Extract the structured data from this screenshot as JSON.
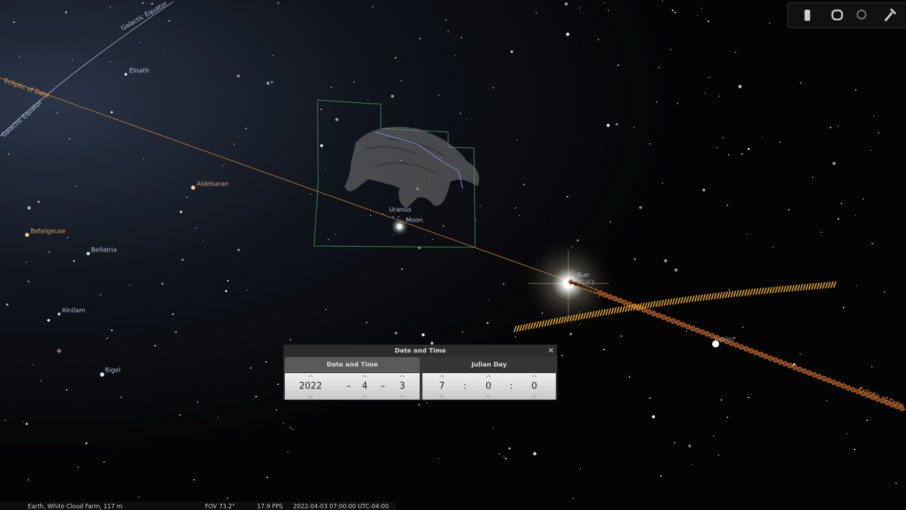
{
  "sky_labels": {
    "galactic_equator_top": "Galactic Equator",
    "galactic_equator_left": "Galactic Equator",
    "ecliptic_left": "Ecliptic of Date",
    "ecliptic_right": "Ecliptic of Date",
    "elnath": "Elnath",
    "aldebaran": "Aldebaran",
    "betelgeuse": "Betelgeuse",
    "bellatrix": "Bellatrix",
    "alnilam": "Alnilam",
    "rigel": "Rigel",
    "uranus": "Uranus",
    "moon": "Moon",
    "sun": "Sun",
    "mercury": "Mercury",
    "jupiter": "Jupiter"
  },
  "dialog": {
    "title": "Date and Time",
    "close": "✕",
    "tabs": [
      "Date and Time",
      "Julian Day"
    ],
    "date": {
      "year": 2022,
      "month": 4,
      "day": 3
    },
    "time": {
      "hour": 7,
      "minute": 0,
      "second": 0
    },
    "date_separator": "–",
    "time_separator": ":"
  },
  "status_bar": {
    "location": "Earth, White Cloud Farm, 117 m",
    "fov": "FOV 73.2°",
    "fps": "17.9 FPS",
    "datetime": "2022-04-03 07:00:00 UTC-04:00"
  }
}
